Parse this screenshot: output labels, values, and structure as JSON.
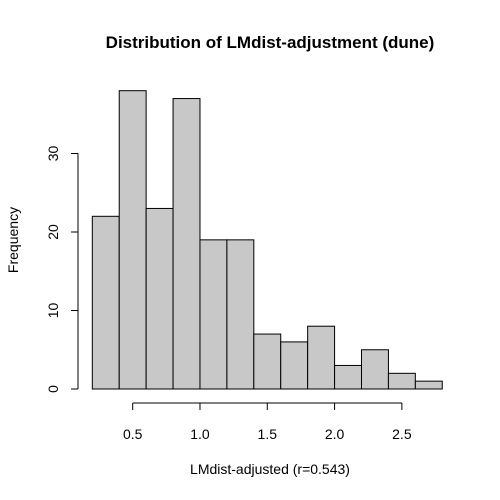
{
  "chart_data": {
    "type": "bar",
    "title": "Distribution of LMdist-adjustment (dune)",
    "xlabel": "LMdist-adjusted (r=0.543)",
    "ylabel": "Frequency",
    "bin_edges": [
      0.2,
      0.4,
      0.6,
      0.8,
      1.0,
      1.2,
      1.4,
      1.6,
      1.8,
      2.0,
      2.2,
      2.4,
      2.6,
      2.8
    ],
    "values": [
      22,
      38,
      23,
      37,
      19,
      19,
      7,
      6,
      8,
      3,
      5,
      2,
      1
    ],
    "xlim": [
      0.2,
      2.8
    ],
    "ylim": [
      0,
      38
    ],
    "xticks": [
      "0.5",
      "1.0",
      "1.5",
      "2.0",
      "2.5"
    ],
    "yticks": [
      "0",
      "10",
      "20",
      "30"
    ],
    "bar_color": "#c8c8c8",
    "grid": false
  }
}
